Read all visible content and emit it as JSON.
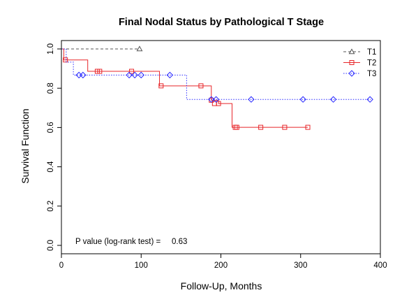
{
  "chart_data": {
    "type": "line",
    "subtype": "kaplan-meier step",
    "title": "Final Nodal Status by Pathological T Stage",
    "xlabel": "Follow-Up, Months",
    "ylabel": "Survival Function",
    "xlim": [
      0,
      400
    ],
    "ylim": [
      0,
      1
    ],
    "xticks": [
      "0",
      "100",
      "200",
      "300",
      "400"
    ],
    "yticks": [
      "0.0",
      "0.2",
      "0.4",
      "0.6",
      "0.8",
      "1.0"
    ],
    "grid": false,
    "legend_position": "top-right",
    "annotation": {
      "label": "P value (log-rank test) =",
      "value": "0.63"
    },
    "series": [
      {
        "name": "T1",
        "color": "#555555",
        "line_style": "dashed",
        "marker": "triangle",
        "steps": [
          [
            0,
            1.0
          ],
          [
            98,
            1.0
          ]
        ],
        "markers": [
          [
            98,
            1.0
          ]
        ]
      },
      {
        "name": "T2",
        "color": "#e8262a",
        "line_style": "solid",
        "marker": "square",
        "steps": [
          [
            0,
            1.0
          ],
          [
            3,
            0.944
          ],
          [
            33,
            0.886
          ],
          [
            123,
            0.812
          ],
          [
            188,
            0.739
          ],
          [
            197,
            0.722
          ],
          [
            214,
            0.601
          ],
          [
            309,
            0.601
          ]
        ],
        "markers": [
          [
            5,
            0.944
          ],
          [
            45,
            0.886
          ],
          [
            48,
            0.886
          ],
          [
            88,
            0.886
          ],
          [
            125,
            0.812
          ],
          [
            175,
            0.812
          ],
          [
            188,
            0.739
          ],
          [
            192,
            0.722
          ],
          [
            197,
            0.722
          ],
          [
            218,
            0.601
          ],
          [
            220,
            0.601
          ],
          [
            250,
            0.601
          ],
          [
            280,
            0.601
          ],
          [
            309,
            0.601
          ]
        ]
      },
      {
        "name": "T3",
        "color": "#2b2bff",
        "line_style": "dotted",
        "marker": "diamond",
        "steps": [
          [
            0,
            1.0
          ],
          [
            6,
            0.933
          ],
          [
            15,
            0.867
          ],
          [
            157,
            0.743
          ],
          [
            388,
            0.743
          ]
        ],
        "markers": [
          [
            22,
            0.867
          ],
          [
            27,
            0.867
          ],
          [
            85,
            0.867
          ],
          [
            92,
            0.867
          ],
          [
            100,
            0.867
          ],
          [
            136,
            0.867
          ],
          [
            188,
            0.743
          ],
          [
            194,
            0.743
          ],
          [
            238,
            0.743
          ],
          [
            303,
            0.743
          ],
          [
            341,
            0.743
          ],
          [
            387,
            0.743
          ]
        ]
      }
    ]
  }
}
